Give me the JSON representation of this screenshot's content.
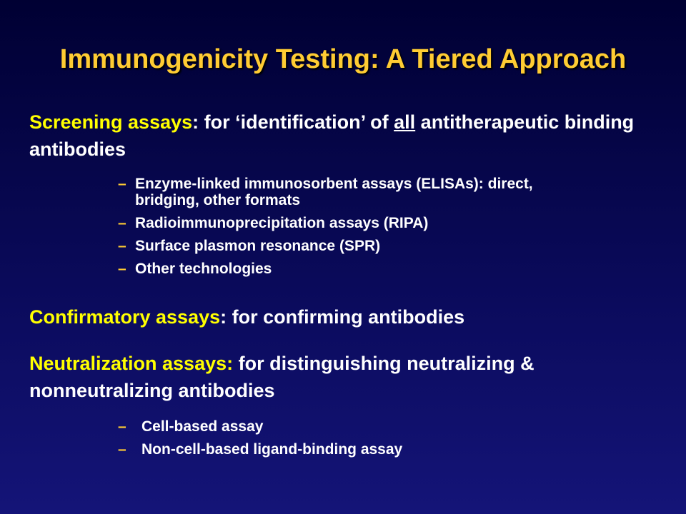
{
  "title": "Immunogenicity Testing: A Tiered Approach",
  "screening": {
    "heading": "Screening assays",
    "text_a": ": for ‘identification’ of ",
    "emph": "all",
    "text_b": " antitherapeutic binding antibodies",
    "items": [
      "Enzyme-linked immunosorbent assays (ELISAs): direct, bridging, other formats",
      "Radioimmunoprecipitation assays (RIPA)",
      "Surface plasmon resonance (SPR)",
      "Other technologies"
    ]
  },
  "confirmatory": {
    "heading": "Confirmatory assays",
    "text": ": for confirming antibodies"
  },
  "neutralization": {
    "heading": "Neutralization assays:",
    "text": " for distinguishing neutralizing & nonneutralizing antibodies",
    "items": [
      "Cell-based assay",
      "Non-cell-based ligand-binding assay"
    ]
  },
  "bullet_dash": "–",
  "colors": {
    "title": "#FFCC33",
    "highlight": "#FFFF00",
    "text": "#FFFFFF",
    "dash": "#FFCC33"
  }
}
